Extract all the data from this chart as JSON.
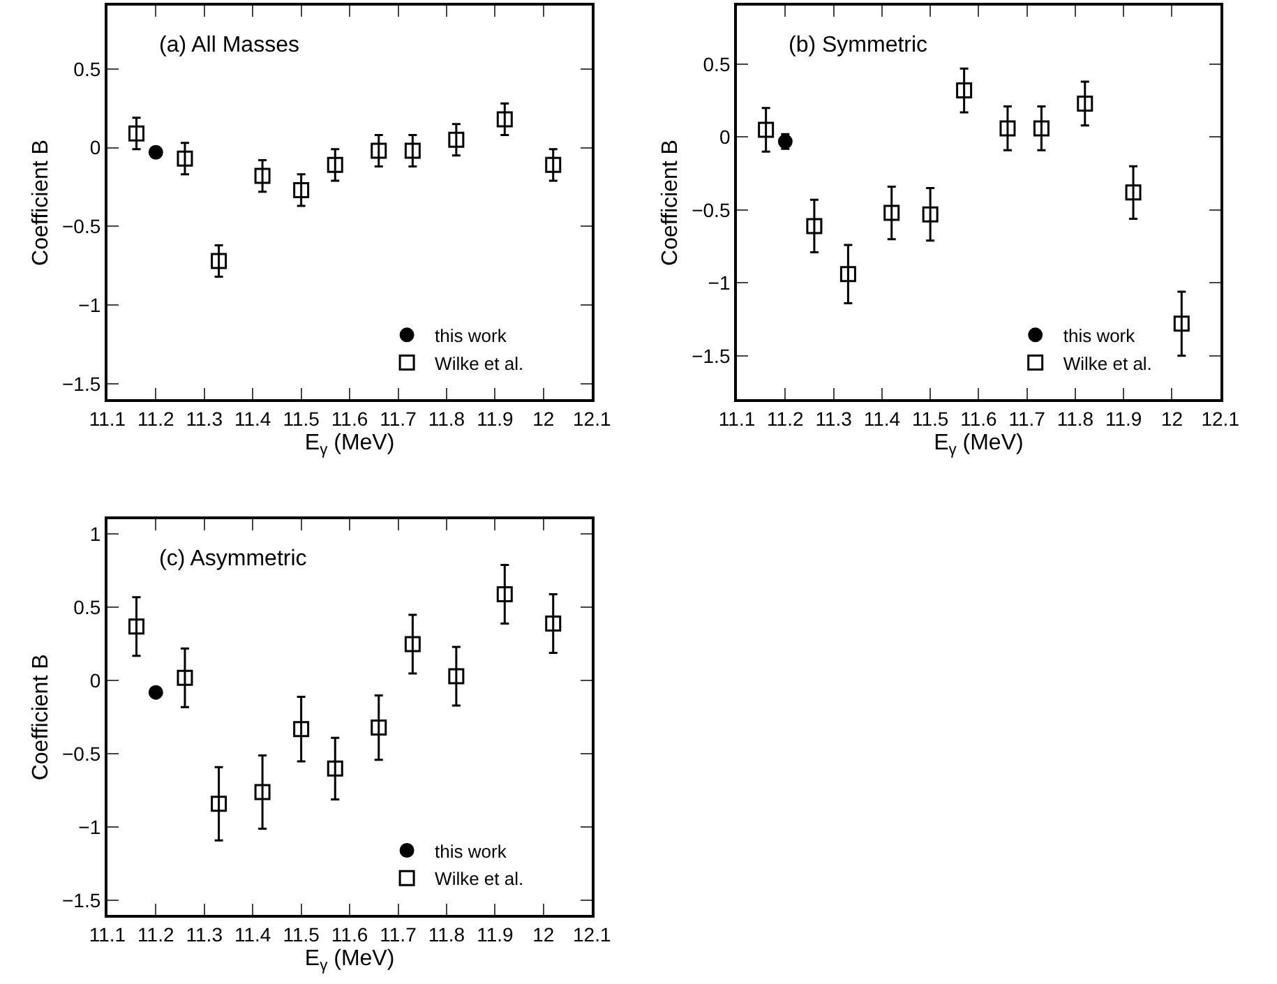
{
  "chart_data": [
    {
      "type": "scatter",
      "title": "(a) All Masses",
      "xlabel": "E$_{γ}$ (MeV)",
      "ylabel": "Coefficient B",
      "xlim": [
        11.1,
        12.1
      ],
      "ylim": [
        -1.6,
        0.9
      ],
      "xticks": [
        11.1,
        11.2,
        11.3,
        11.4,
        11.5,
        11.6,
        11.7,
        11.8,
        11.9,
        12,
        12.1
      ],
      "yticks": [
        {
          "value": -1.5,
          "label": "−1.5"
        },
        {
          "value": -1,
          "label": "−1"
        },
        {
          "value": -0.5,
          "label": "−0.5"
        },
        0,
        0.5
      ],
      "legend": "bottom right",
      "series": [
        {
          "name": "this work",
          "color": "#000000",
          "marker": "circle",
          "x": [
            11.2
          ],
          "values": [
            -0.03
          ],
          "errors": [
            null
          ]
        },
        {
          "name": "Wilke et al.",
          "color": "#000000",
          "marker": "square-open",
          "x": [
            11.16,
            11.26,
            11.33,
            11.42,
            11.5,
            11.57,
            11.66,
            11.73,
            11.82,
            11.92,
            12.02
          ],
          "values": [
            0.09,
            -0.07,
            -0.72,
            -0.18,
            -0.27,
            -0.11,
            -0.02,
            -0.02,
            0.05,
            0.18,
            -0.11
          ],
          "errors": [
            0.1,
            0.1,
            0.1,
            0.1,
            0.1,
            0.1,
            0.1,
            0.1,
            0.1,
            0.1,
            0.1
          ]
        }
      ]
    },
    {
      "type": "scatter",
      "title": "(b) Symmetric",
      "xlabel": "E$_{γ}$ (MeV)",
      "ylabel": "Coefficient B",
      "xlim": [
        11.1,
        12.1
      ],
      "ylim": [
        -1.8,
        0.9
      ],
      "xticks": [
        11.1,
        11.2,
        11.3,
        11.4,
        11.5,
        11.6,
        11.7,
        11.8,
        11.9,
        12,
        12.1
      ],
      "yticks": [
        {
          "value": -1.5,
          "label": "−1.5"
        },
        {
          "value": -1,
          "label": "−1"
        },
        {
          "value": -0.5,
          "label": "−0.5"
        },
        0,
        0.5
      ],
      "legend": "bottom right",
      "series": [
        {
          "name": "this work",
          "color": "#000000",
          "marker": "circle",
          "x": [
            11.2
          ],
          "values": [
            -0.03
          ],
          "errors": [
            0.05
          ]
        },
        {
          "name": "Wilke et al.",
          "color": "#000000",
          "marker": "square-open",
          "x": [
            11.16,
            11.26,
            11.33,
            11.42,
            11.5,
            11.57,
            11.66,
            11.73,
            11.82,
            11.92,
            12.02
          ],
          "values": [
            0.05,
            -0.61,
            -0.94,
            -0.52,
            -0.53,
            0.32,
            0.06,
            0.06,
            0.23,
            -0.38,
            -1.28
          ],
          "errors": [
            0.15,
            0.18,
            0.2,
            0.18,
            0.18,
            0.15,
            0.15,
            0.15,
            0.15,
            0.18,
            0.22
          ]
        }
      ]
    },
    {
      "type": "scatter",
      "title": "(c) Asymmetric",
      "xlabel": "E$_{γ}$ (MeV)",
      "ylabel": "Coefficient B",
      "xlim": [
        11.1,
        12.1
      ],
      "ylim": [
        -1.6,
        1.1
      ],
      "xticks": [
        11.1,
        11.2,
        11.3,
        11.4,
        11.5,
        11.6,
        11.7,
        11.8,
        11.9,
        12,
        12.1
      ],
      "yticks": [
        {
          "value": -1.5,
          "label": "−1.5"
        },
        {
          "value": -1,
          "label": "−1"
        },
        {
          "value": -0.5,
          "label": "−0.5"
        },
        0,
        0.5,
        1
      ],
      "legend": "bottom right",
      "series": [
        {
          "name": "this work",
          "color": "#000000",
          "marker": "circle",
          "x": [
            11.2
          ],
          "values": [
            -0.08
          ],
          "errors": [
            null
          ]
        },
        {
          "name": "Wilke et al.",
          "color": "#000000",
          "marker": "square-open",
          "x": [
            11.16,
            11.26,
            11.33,
            11.42,
            11.5,
            11.57,
            11.66,
            11.73,
            11.82,
            11.92,
            12.02
          ],
          "values": [
            0.37,
            0.02,
            -0.84,
            -0.76,
            -0.33,
            -0.6,
            -0.32,
            0.25,
            0.03,
            0.59,
            0.39
          ],
          "errors": [
            0.2,
            0.2,
            0.25,
            0.25,
            0.22,
            0.21,
            0.22,
            0.2,
            0.2,
            0.2,
            0.2
          ]
        }
      ]
    }
  ]
}
